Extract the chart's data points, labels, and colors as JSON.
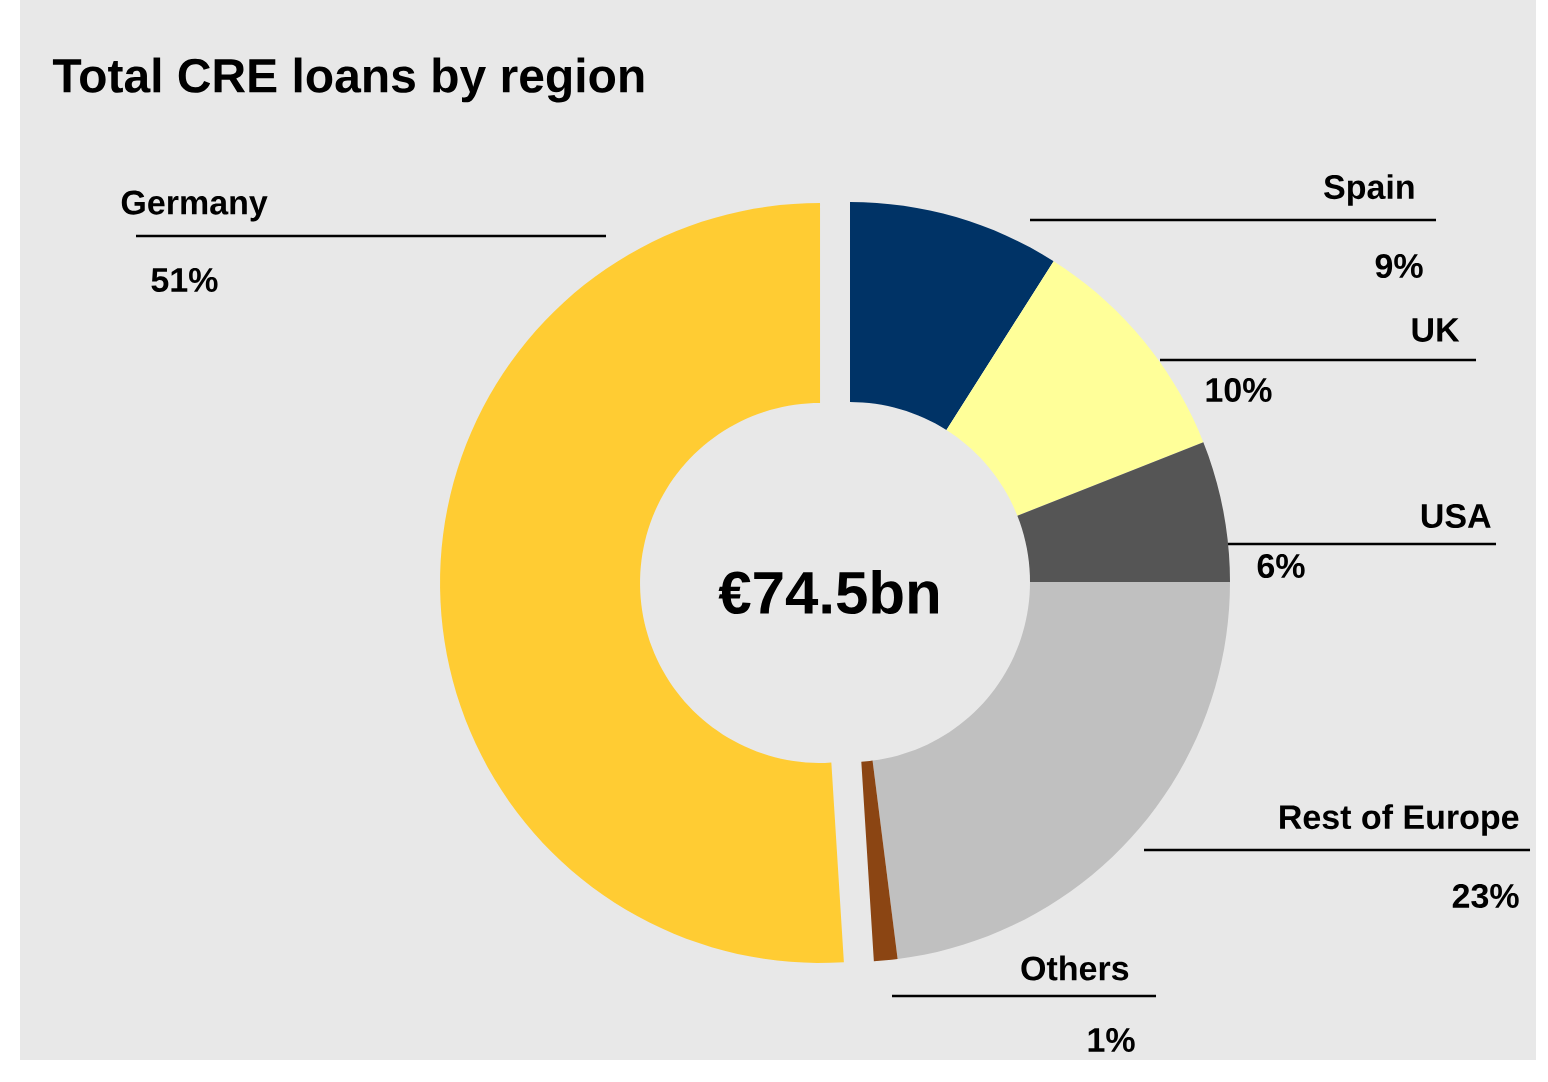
{
  "chart_data": {
    "type": "donut",
    "title": "Total CRE loans by region",
    "categories": [
      "Spain",
      "UK",
      "USA",
      "Rest of Europe",
      "Others",
      "Germany"
    ],
    "values": [
      9,
      10,
      6,
      23,
      1,
      51
    ],
    "colors": [
      "#003366",
      "#ffff99",
      "#555555",
      "#c0c0c0",
      "#8b4513",
      "#ffcc33"
    ],
    "value_labels": [
      "9%",
      "10%",
      "6%",
      "23%",
      "1%",
      "51%"
    ],
    "annotations": [
      "€74.5bn"
    ]
  }
}
